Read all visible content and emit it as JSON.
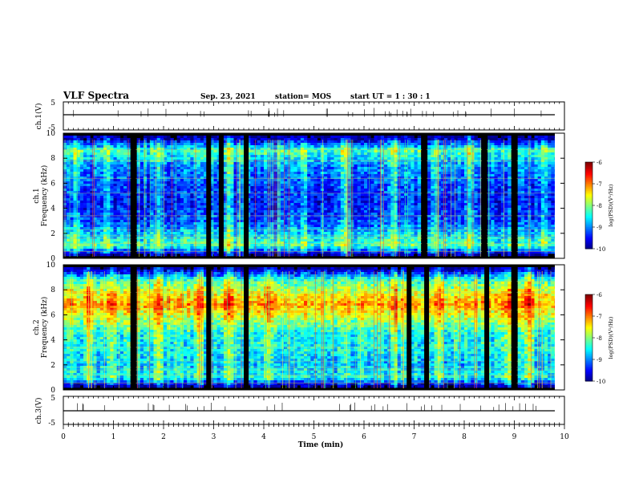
{
  "header": {
    "title": "VLF Spectra",
    "date": "Sep. 23, 2021",
    "station": "station= MOS",
    "start": "start  UT =   1 : 30 : 1"
  },
  "chart_data": [
    {
      "type": "line",
      "panel": "ch1-voltage",
      "ylabel": "ch.1(V)",
      "ylim": [
        -5,
        5
      ],
      "yticks": [
        "5",
        "-5"
      ],
      "series": [
        {
          "x": [
            0,
            10
          ],
          "values": [
            0,
            0
          ]
        }
      ]
    },
    {
      "type": "heatmap",
      "panel": "ch1-spectrogram",
      "ylabel": "ch.1\nFrequency (kHz)",
      "xlim": [
        0,
        10
      ],
      "ylim": [
        0,
        10
      ],
      "yticks": [
        "0",
        "2",
        "4",
        "6",
        "8",
        "10"
      ],
      "colorbar": {
        "label": "log(PSD)(V²/Hz)",
        "ticks": [
          "-6",
          "-7",
          "-8",
          "-9",
          "-10"
        ],
        "range": [
          -10,
          -6
        ]
      },
      "dark_gaps_min": [
        1.4,
        2.9,
        3.15,
        3.65,
        7.2,
        8.4,
        9.0
      ],
      "bright_bursts_min": [
        0.25,
        0.9,
        1.9,
        3.3,
        4.8,
        5.6,
        6.6,
        7.4,
        8.1,
        9.6
      ],
      "band_profile": [
        {
          "f": 0.3,
          "level": -9.9
        },
        {
          "f": 1.0,
          "level": -8.2
        },
        {
          "f": 2.0,
          "level": -8.7
        },
        {
          "f": 3.0,
          "level": -9.2
        },
        {
          "f": 4.5,
          "level": -9.4
        },
        {
          "f": 6.0,
          "level": -9.2
        },
        {
          "f": 7.5,
          "level": -8.9
        },
        {
          "f": 8.6,
          "level": -8.2
        },
        {
          "f": 9.6,
          "level": -9.9
        }
      ]
    },
    {
      "type": "heatmap",
      "panel": "ch2-spectrogram",
      "ylabel": "ch.2\nFrequency (kHz)",
      "xlim": [
        0,
        10
      ],
      "ylim": [
        0,
        10
      ],
      "yticks": [
        "0",
        "2",
        "4",
        "6",
        "8",
        "10"
      ],
      "colorbar": {
        "label": "log(PSD)(V²/Hz)",
        "ticks": [
          "-6",
          "-7",
          "-8",
          "-9",
          "-10"
        ],
        "range": [
          -10,
          -6
        ]
      },
      "dark_gaps_min": [
        1.4,
        2.9,
        3.65,
        6.9,
        7.25,
        8.45,
        9.0
      ],
      "bright_bursts_min": [
        0.5,
        1.0,
        1.9,
        2.7,
        3.3,
        4.1,
        6.6,
        7.5,
        8.9,
        9.3
      ],
      "band_profile": [
        {
          "f": 0.3,
          "level": -9.9
        },
        {
          "f": 1.0,
          "level": -8.4
        },
        {
          "f": 2.0,
          "level": -8.7
        },
        {
          "f": 3.0,
          "level": -8.5
        },
        {
          "f": 4.5,
          "level": -8.4
        },
        {
          "f": 5.5,
          "level": -7.9
        },
        {
          "f": 6.8,
          "level": -7.1
        },
        {
          "f": 7.8,
          "level": -7.6
        },
        {
          "f": 8.8,
          "level": -8.3
        },
        {
          "f": 9.7,
          "level": -9.9
        }
      ]
    },
    {
      "type": "line",
      "panel": "ch3-voltage",
      "ylabel": "ch.3(V)",
      "ylim": [
        -5,
        5
      ],
      "yticks": [
        "5",
        "-5"
      ],
      "series": [
        {
          "x": [
            0,
            10
          ],
          "values": [
            0,
            0
          ]
        }
      ]
    }
  ],
  "xaxis": {
    "label": "Time  (min)",
    "ticks": [
      "0",
      "1",
      "2",
      "3",
      "4",
      "5",
      "6",
      "7",
      "8",
      "9",
      "10"
    ]
  },
  "colors": {
    "axis": "#000000",
    "background": "#ffffff"
  }
}
